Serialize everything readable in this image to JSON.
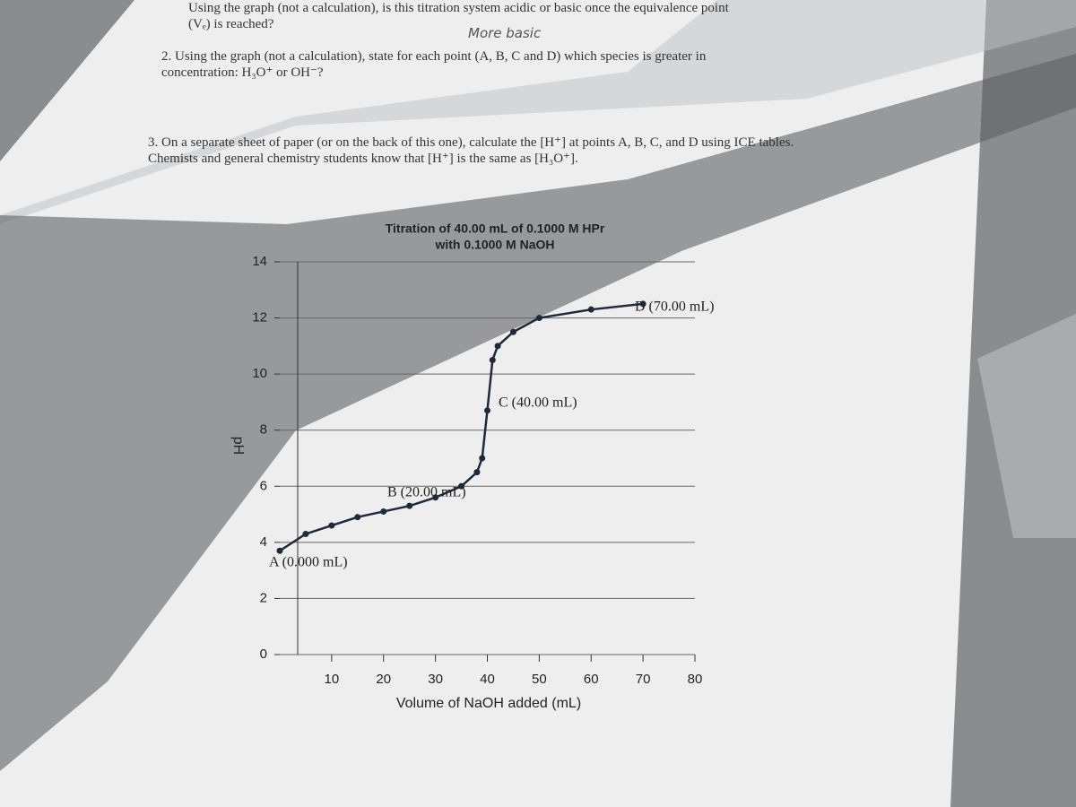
{
  "questions": {
    "q1": "Using the graph (not a calculation), is this titration system acidic or basic once the equivalence point (Vₑ) is reached?",
    "q1_answer": "More basic",
    "q2": "2.  Using the graph (not a calculation), state for each point (A, B, C and D) which species is greater in concentration: H₃O⁺ or OH⁻?",
    "q3": "3.  On a separate sheet of paper (or on the back of this one), calculate the [H⁺] at points A, B, C, and D using ICE tables. Chemists and general chemistry students know that [H⁺] is the same as [H₃O⁺]."
  },
  "chart_data": {
    "type": "line",
    "title": "Titration of 40.00 mL of 0.1000 M HPr",
    "subtitle": "with 0.1000 M NaOH",
    "x_label": "Volume of NaOH added (mL)",
    "y_label": "pH",
    "x": [
      0,
      5,
      10,
      15,
      20,
      25,
      30,
      35,
      38,
      39,
      40,
      41,
      42,
      45,
      50,
      60,
      70
    ],
    "series": [
      {
        "name": "pH",
        "color": "#1e2a3a",
        "values": [
          3.7,
          4.3,
          4.6,
          4.9,
          5.1,
          5.3,
          5.6,
          6.0,
          6.5,
          7.0,
          8.7,
          10.5,
          11.0,
          11.5,
          12.0,
          12.3,
          12.5
        ]
      }
    ],
    "annotations": [
      "A (0.000 mL)",
      "B (20.00 mL)",
      "C (40.00 mL)",
      "D (70.00 mL)"
    ],
    "xlim": [
      0,
      80
    ],
    "xticks": [
      10,
      20,
      30,
      40,
      50,
      60,
      70,
      80
    ],
    "ylim": [
      0,
      14
    ],
    "yticks": [
      0,
      2,
      4,
      6,
      8,
      10,
      12,
      14
    ],
    "grid": true
  }
}
